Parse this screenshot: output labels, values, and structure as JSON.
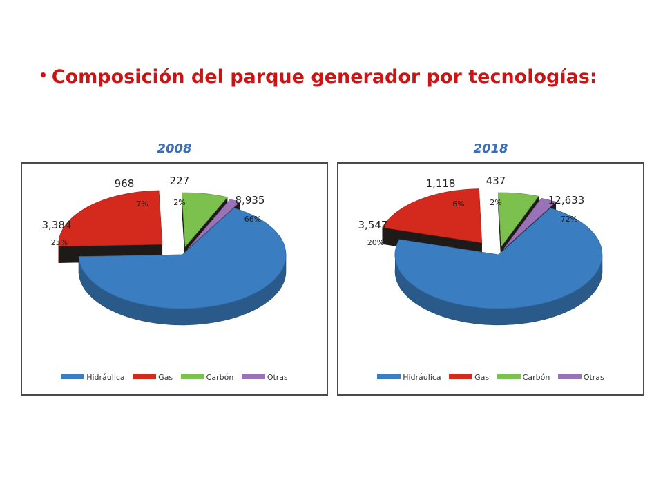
{
  "title": {
    "bullet": "•",
    "text": "Composición del parque generador por tecnologías:"
  },
  "chart_data": [
    {
      "type": "pie",
      "title": "2008",
      "categories": [
        "Hidráulica",
        "Gas",
        "Carbón",
        "Otras"
      ],
      "values": [
        8935,
        3384,
        968,
        227
      ],
      "value_labels": [
        "8,935",
        "3,384",
        "968",
        "227"
      ],
      "percent_labels": [
        "66%",
        "25%",
        "7%",
        "2%"
      ],
      "colors": [
        "#3a7dc0",
        "#d42a1e",
        "#7cc04e",
        "#9a72b8"
      ],
      "legend": "bottom"
    },
    {
      "type": "pie",
      "title": "2018",
      "categories": [
        "Hidráulica",
        "Gas",
        "Carbón",
        "Otras"
      ],
      "values": [
        12633,
        3547,
        1118,
        437
      ],
      "value_labels": [
        "12,633",
        "3,547",
        "1,118",
        "437"
      ],
      "percent_labels": [
        "72%",
        "20%",
        "6%",
        "2%"
      ],
      "colors": [
        "#3a7dc0",
        "#d42a1e",
        "#7cc04e",
        "#9a72b8"
      ],
      "legend": "bottom"
    }
  ]
}
